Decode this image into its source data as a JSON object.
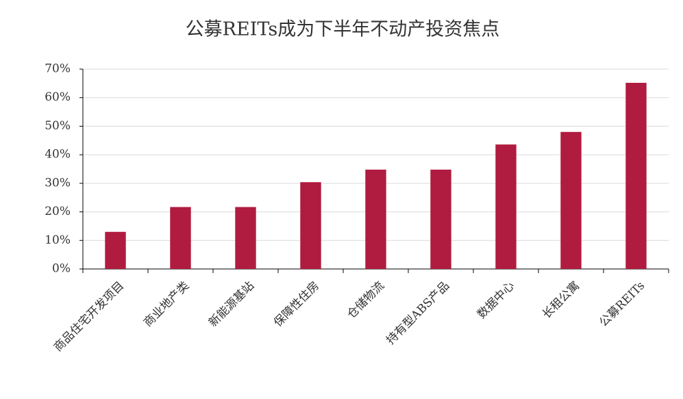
{
  "chart_data": {
    "type": "bar",
    "title": "公募REITs成为下半年不动产投资焦点",
    "categories": [
      "商品住宅开发项目",
      "商业地产类",
      "新能源基站",
      "保障性住房",
      "仓储物流",
      "持有型ABS产品",
      "数据中心",
      "长租公寓",
      "公募REITs"
    ],
    "values": [
      13,
      21.7,
      21.7,
      30.4,
      34.8,
      34.8,
      43.6,
      48,
      65.2
    ],
    "color": "#b01c3f",
    "ylim": [
      0,
      70
    ],
    "yticks": [
      {
        "value": 0,
        "label": "0%"
      },
      {
        "value": 10,
        "label": "10%"
      },
      {
        "value": 20,
        "label": "20%"
      },
      {
        "value": 30,
        "label": "30%"
      },
      {
        "value": 40,
        "label": "40%"
      },
      {
        "value": 50,
        "label": "50%"
      },
      {
        "value": 60,
        "label": "60%"
      },
      {
        "value": 70,
        "label": "70%"
      }
    ],
    "grid": true
  }
}
